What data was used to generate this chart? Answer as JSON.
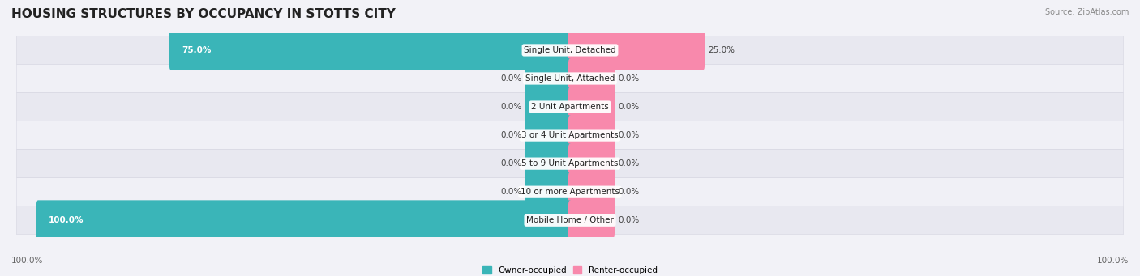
{
  "title": "HOUSING STRUCTURES BY OCCUPANCY IN STOTTS CITY",
  "source": "Source: ZipAtlas.com",
  "categories": [
    "Single Unit, Detached",
    "Single Unit, Attached",
    "2 Unit Apartments",
    "3 or 4 Unit Apartments",
    "5 to 9 Unit Apartments",
    "10 or more Apartments",
    "Mobile Home / Other"
  ],
  "owner_values": [
    75.0,
    0.0,
    0.0,
    0.0,
    0.0,
    0.0,
    100.0
  ],
  "renter_values": [
    25.0,
    0.0,
    0.0,
    0.0,
    0.0,
    0.0,
    0.0
  ],
  "owner_color": "#3ab5b8",
  "renter_color": "#f889ac",
  "title_fontsize": 11,
  "label_fontsize": 7.5,
  "category_fontsize": 7.5,
  "axis_label_fontsize": 7.5,
  "max_value": 100.0,
  "stub_size": 8.0,
  "figsize": [
    14.06,
    3.41
  ],
  "dpi": 100
}
